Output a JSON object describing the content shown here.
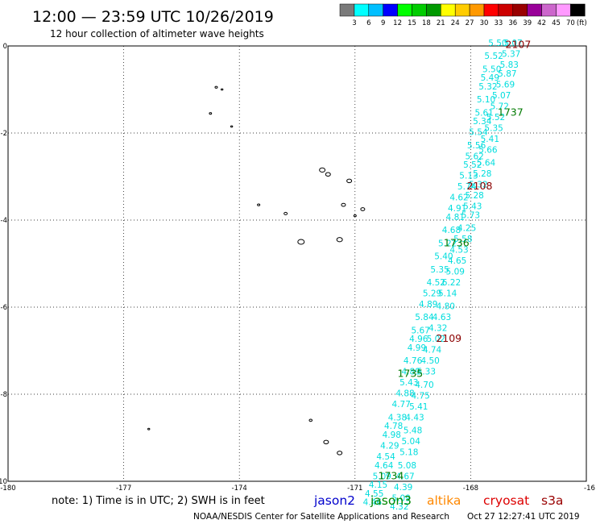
{
  "header": {
    "title": "12:00 — 23:59 UTC 10/26/2019",
    "subtitle": "12 hour collection of altimeter wave heights"
  },
  "colorbar": {
    "unit": "(ft)",
    "bins": [
      {
        "color": "#7a7a7a",
        "label": "3"
      },
      {
        "color": "#00ffff",
        "label": "6"
      },
      {
        "color": "#00bfff",
        "label": "9"
      },
      {
        "color": "#0000ff",
        "label": "12"
      },
      {
        "color": "#00ff00",
        "label": "15"
      },
      {
        "color": "#00cc00",
        "label": "18"
      },
      {
        "color": "#009900",
        "label": "21"
      },
      {
        "color": "#ffff00",
        "label": "24"
      },
      {
        "color": "#ffcc00",
        "label": "27"
      },
      {
        "color": "#ff9900",
        "label": "30"
      },
      {
        "color": "#ff0000",
        "label": "33"
      },
      {
        "color": "#cc0000",
        "label": "36"
      },
      {
        "color": "#990000",
        "label": "39"
      },
      {
        "color": "#990099",
        "label": "42"
      },
      {
        "color": "#cc66cc",
        "label": "45"
      },
      {
        "color": "#ff99ff",
        "label": "70"
      },
      {
        "color": "#000000",
        "label": ""
      }
    ]
  },
  "axes": {
    "lon_ticks": [
      "-180",
      "-177",
      "-174",
      "-171",
      "-168",
      "-16"
    ],
    "lat_ticks": [
      "0",
      "-2",
      "-4",
      "-6",
      "-8",
      "-10"
    ]
  },
  "time_labels": [
    {
      "text": "2107",
      "color": "#8b0000",
      "lon": -167.1,
      "lat": -0.05
    },
    {
      "text": "1737",
      "color": "#007a00",
      "lon": -167.3,
      "lat": -1.6
    },
    {
      "text": "2108",
      "color": "#8b0000",
      "lon": -168.1,
      "lat": -3.3
    },
    {
      "text": "1736",
      "color": "#007a00",
      "lon": -168.7,
      "lat": -4.6
    },
    {
      "text": "2109",
      "color": "#8b0000",
      "lon": -168.9,
      "lat": -6.8
    },
    {
      "text": "1735",
      "color": "#007a00",
      "lon": -169.9,
      "lat": -7.6
    },
    {
      "text": "1734",
      "color": "#007a00",
      "lon": -170.4,
      "lat": -9.95
    }
  ],
  "swh_tracks": [
    {
      "color": "#00dddd",
      "points": [
        {
          "lon": -167.3,
          "lat": -0.0,
          "v": "5.50"
        },
        {
          "lon": -167.4,
          "lat": -0.3,
          "v": "5.52"
        },
        {
          "lon": -167.45,
          "lat": -0.6,
          "v": "5.50"
        },
        {
          "lon": -167.5,
          "lat": -0.8,
          "v": "5.49"
        },
        {
          "lon": -167.55,
          "lat": -1.0,
          "v": "5.32"
        },
        {
          "lon": -167.6,
          "lat": -1.3,
          "v": "5.10"
        },
        {
          "lon": -167.65,
          "lat": -1.6,
          "v": "5.61"
        },
        {
          "lon": -167.7,
          "lat": -1.8,
          "v": "5.34"
        },
        {
          "lon": -167.8,
          "lat": -2.05,
          "v": "5.54"
        },
        {
          "lon": -167.85,
          "lat": -2.35,
          "v": "5.56"
        },
        {
          "lon": -167.9,
          "lat": -2.6,
          "v": "5.62"
        },
        {
          "lon": -167.95,
          "lat": -2.8,
          "v": "5.52"
        },
        {
          "lon": -168.05,
          "lat": -3.05,
          "v": "5.13"
        },
        {
          "lon": -168.1,
          "lat": -3.3,
          "v": "5.74"
        },
        {
          "lon": -168.3,
          "lat": -3.55,
          "v": "4.62"
        },
        {
          "lon": -168.35,
          "lat": -3.8,
          "v": "4.91"
        },
        {
          "lon": -168.4,
          "lat": -4.0,
          "v": "4.81"
        },
        {
          "lon": -168.5,
          "lat": -4.3,
          "v": "4.68"
        },
        {
          "lon": -168.6,
          "lat": -4.6,
          "v": "5.22"
        },
        {
          "lon": -168.7,
          "lat": -4.9,
          "v": "5.40"
        },
        {
          "lon": -168.8,
          "lat": -5.2,
          "v": "5.35"
        },
        {
          "lon": -168.9,
          "lat": -5.5,
          "v": "4.52"
        },
        {
          "lon": -169.0,
          "lat": -5.75,
          "v": "5.29"
        },
        {
          "lon": -169.1,
          "lat": -6.0,
          "v": "4.89"
        },
        {
          "lon": -169.2,
          "lat": -6.3,
          "v": "5.84"
        },
        {
          "lon": -169.3,
          "lat": -6.6,
          "v": "5.67"
        },
        {
          "lon": -169.35,
          "lat": -6.8,
          "v": "4.96"
        },
        {
          "lon": -169.4,
          "lat": -7.0,
          "v": "4.99"
        },
        {
          "lon": -169.5,
          "lat": -7.3,
          "v": "4.76"
        },
        {
          "lon": -169.55,
          "lat": -7.55,
          "v": "4.89"
        },
        {
          "lon": -169.6,
          "lat": -7.8,
          "v": "5.43"
        },
        {
          "lon": -169.7,
          "lat": -8.05,
          "v": "4.88"
        },
        {
          "lon": -169.8,
          "lat": -8.3,
          "v": "4.77"
        },
        {
          "lon": -169.9,
          "lat": -8.6,
          "v": "4.38"
        },
        {
          "lon": -170.0,
          "lat": -8.8,
          "v": "4.78"
        },
        {
          "lon": -170.05,
          "lat": -9.0,
          "v": "4.98"
        },
        {
          "lon": -170.1,
          "lat": -9.25,
          "v": "4.29"
        },
        {
          "lon": -170.2,
          "lat": -9.5,
          "v": "4.54"
        },
        {
          "lon": -170.25,
          "lat": -9.7,
          "v": "4.64"
        },
        {
          "lon": -170.3,
          "lat": -9.95,
          "v": "5.09"
        },
        {
          "lon": -170.4,
          "lat": -10.15,
          "v": "4.15"
        },
        {
          "lon": -170.5,
          "lat": -10.35,
          "v": "4.55"
        },
        {
          "lon": -170.55,
          "lat": -10.55,
          "v": "4.46"
        }
      ]
    },
    {
      "color": "#00dddd",
      "points": [
        {
          "lon": -166.9,
          "lat": 0.0,
          "v": "5.07"
        },
        {
          "lon": -166.95,
          "lat": -0.25,
          "v": "5.37"
        },
        {
          "lon": -167.0,
          "lat": -0.5,
          "v": "5.83"
        },
        {
          "lon": -167.05,
          "lat": -0.7,
          "v": "5.87"
        },
        {
          "lon": -167.1,
          "lat": -0.95,
          "v": "5.69"
        },
        {
          "lon": -167.2,
          "lat": -1.2,
          "v": "5.07"
        },
        {
          "lon": -167.25,
          "lat": -1.45,
          "v": "5.72"
        },
        {
          "lon": -167.35,
          "lat": -1.7,
          "v": "5.52"
        },
        {
          "lon": -167.4,
          "lat": -1.95,
          "v": "5.35"
        },
        {
          "lon": -167.5,
          "lat": -2.2,
          "v": "5.41"
        },
        {
          "lon": -167.55,
          "lat": -2.45,
          "v": "5.66"
        },
        {
          "lon": -167.6,
          "lat": -2.75,
          "v": "5.64"
        },
        {
          "lon": -167.7,
          "lat": -3.0,
          "v": "5.28"
        },
        {
          "lon": -167.8,
          "lat": -3.25,
          "v": "5.32"
        },
        {
          "lon": -167.9,
          "lat": -3.5,
          "v": "5.28"
        },
        {
          "lon": -167.95,
          "lat": -3.75,
          "v": "5.43"
        },
        {
          "lon": -168.0,
          "lat": -3.95,
          "v": "5.73"
        },
        {
          "lon": -168.1,
          "lat": -4.25,
          "v": "4.25"
        },
        {
          "lon": -168.2,
          "lat": -4.5,
          "v": "5.58"
        },
        {
          "lon": -168.3,
          "lat": -4.75,
          "v": "4.53"
        },
        {
          "lon": -168.35,
          "lat": -5.0,
          "v": "4.65"
        },
        {
          "lon": -168.4,
          "lat": -5.25,
          "v": "5.09"
        },
        {
          "lon": -168.5,
          "lat": -5.5,
          "v": "6.22"
        },
        {
          "lon": -168.6,
          "lat": -5.75,
          "v": "5.14"
        },
        {
          "lon": -168.65,
          "lat": -6.05,
          "v": "4.80"
        },
        {
          "lon": -168.75,
          "lat": -6.3,
          "v": "4.63"
        },
        {
          "lon": -168.85,
          "lat": -6.55,
          "v": "4.32"
        },
        {
          "lon": -168.9,
          "lat": -6.8,
          "v": "5.02"
        },
        {
          "lon": -169.0,
          "lat": -7.05,
          "v": "4.74"
        },
        {
          "lon": -169.05,
          "lat": -7.3,
          "v": "4.50"
        },
        {
          "lon": -169.15,
          "lat": -7.55,
          "v": "5.33"
        },
        {
          "lon": -169.2,
          "lat": -7.85,
          "v": "4.70"
        },
        {
          "lon": -169.3,
          "lat": -8.1,
          "v": "4.75"
        },
        {
          "lon": -169.35,
          "lat": -8.35,
          "v": "5.41"
        },
        {
          "lon": -169.45,
          "lat": -8.6,
          "v": "4.43"
        },
        {
          "lon": -169.5,
          "lat": -8.9,
          "v": "5.48"
        },
        {
          "lon": -169.55,
          "lat": -9.15,
          "v": "5.04"
        },
        {
          "lon": -169.6,
          "lat": -9.4,
          "v": "5.18"
        },
        {
          "lon": -169.65,
          "lat": -9.7,
          "v": "5.08"
        },
        {
          "lon": -169.7,
          "lat": -9.95,
          "v": "4.67"
        },
        {
          "lon": -169.75,
          "lat": -10.2,
          "v": "4.39"
        },
        {
          "lon": -169.8,
          "lat": -10.45,
          "v": "5.09"
        },
        {
          "lon": -169.85,
          "lat": -10.65,
          "v": "4.32"
        }
      ]
    }
  ],
  "islands": [
    {
      "lon": -174.6,
      "lat": -0.95,
      "r": 1.5
    },
    {
      "lon": -174.45,
      "lat": -1.0,
      "r": 1.2
    },
    {
      "lon": -174.75,
      "lat": -1.55,
      "r": 1.4
    },
    {
      "lon": -174.2,
      "lat": -1.85,
      "r": 1.2
    },
    {
      "lon": -171.85,
      "lat": -2.85,
      "r": 3.5
    },
    {
      "lon": -171.7,
      "lat": -2.95,
      "r": 3
    },
    {
      "lon": -171.15,
      "lat": -3.1,
      "r": 3
    },
    {
      "lon": -171.3,
      "lat": -3.65,
      "r": 2.5
    },
    {
      "lon": -170.8,
      "lat": -3.75,
      "r": 2.5
    },
    {
      "lon": -173.5,
      "lat": -3.65,
      "r": 1.5
    },
    {
      "lon": -172.8,
      "lat": -3.85,
      "r": 2
    },
    {
      "lon": -171.0,
      "lat": -3.9,
      "r": 1.5
    },
    {
      "lon": -172.4,
      "lat": -4.5,
      "r": 4
    },
    {
      "lon": -171.4,
      "lat": -4.45,
      "r": 3.5
    },
    {
      "lon": -176.35,
      "lat": -8.8,
      "r": 1.2
    },
    {
      "lon": -172.15,
      "lat": -8.6,
      "r": 1.8
    },
    {
      "lon": -171.75,
      "lat": -9.1,
      "r": 3
    },
    {
      "lon": -171.4,
      "lat": -9.35,
      "r": 3
    }
  ],
  "footer": {
    "note": "note: 1) Time is in UTC; 2) SWH is in feet",
    "legend": [
      {
        "label": "jason2",
        "color": "#0000cc"
      },
      {
        "label": "jason3",
        "color": "#008800"
      },
      {
        "label": "altika",
        "color": "#ff8800"
      },
      {
        "label": "cryosat",
        "color": "#dd0000"
      },
      {
        "label": "s3a",
        "color": "#990000"
      }
    ],
    "credit": "NOAA/NESDIS Center for Satellite Applications and Research",
    "timestamp": "Oct 27 12:27:41 UTC 2019"
  }
}
